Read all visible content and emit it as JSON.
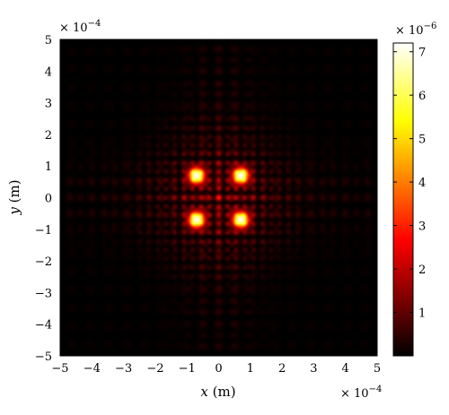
{
  "chart_data": {
    "type": "heatmap",
    "title": "",
    "xlabel": {
      "var": "x",
      "unit": " (m)"
    },
    "ylabel": {
      "var": "y",
      "unit": " (m)"
    },
    "xlim": [
      -0.0005,
      0.0005
    ],
    "ylim": [
      -0.0005,
      0.0005
    ],
    "x_tick_labels": [
      "−5",
      "−4",
      "−3",
      "−2",
      "−1",
      "0",
      "1",
      "2",
      "3",
      "4",
      "5"
    ],
    "y_tick_labels": [
      "−5",
      "−4",
      "−3",
      "−2",
      "−1",
      "0",
      "1",
      "2",
      "3",
      "4",
      "5"
    ],
    "x_exponent": {
      "base": "× 10",
      "power": "−4"
    },
    "y_exponent": {
      "base": "× 10",
      "power": "−4"
    },
    "colorbar": {
      "range": [
        0,
        7.2e-06
      ],
      "tick_labels": [
        "1",
        "2",
        "3",
        "4",
        "5",
        "6",
        "7"
      ],
      "tick_values": [
        1,
        2,
        3,
        4,
        5,
        6,
        7
      ],
      "exponent": {
        "base": "× 10",
        "power": "−6"
      },
      "colormap": "hot"
    },
    "grid": false,
    "peaks": [
      {
        "x": -7e-05,
        "y": 7e-05,
        "value": 7.2e-06
      },
      {
        "x": 7e-05,
        "y": 7e-05,
        "value": 7.2e-06
      },
      {
        "x": -7e-05,
        "y": -7e-05,
        "value": 7.2e-06
      },
      {
        "x": 7e-05,
        "y": -7e-05,
        "value": 7.2e-06
      }
    ]
  }
}
